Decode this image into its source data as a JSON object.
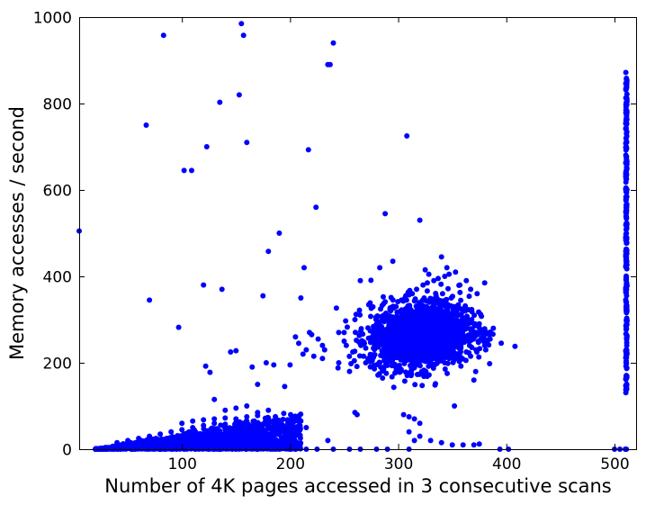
{
  "chart_data": {
    "type": "scatter",
    "title": "",
    "xlabel": "Number of 4K pages accessed in 3 consecutive scans",
    "ylabel": "Memory accesses / second",
    "xlim": [
      5,
      520
    ],
    "ylim": [
      0,
      1000
    ],
    "xticks": [
      100,
      200,
      300,
      400,
      500
    ],
    "yticks": [
      0,
      200,
      400,
      600,
      800,
      1000
    ],
    "grid": false,
    "marker_color": "#0000ff",
    "points": [
      [
        5,
        505
      ],
      [
        67,
        750
      ],
      [
        70,
        345
      ],
      [
        83,
        958
      ],
      [
        97,
        282
      ],
      [
        102,
        645
      ],
      [
        109,
        645
      ],
      [
        120,
        380
      ],
      [
        122,
        192
      ],
      [
        123,
        700
      ],
      [
        126,
        178
      ],
      [
        130,
        115
      ],
      [
        135,
        803
      ],
      [
        137,
        370
      ],
      [
        145,
        225
      ],
      [
        150,
        228
      ],
      [
        153,
        820
      ],
      [
        155,
        985
      ],
      [
        157,
        958
      ],
      [
        160,
        710
      ],
      [
        165,
        190
      ],
      [
        170,
        150
      ],
      [
        175,
        355
      ],
      [
        178,
        200
      ],
      [
        180,
        458
      ],
      [
        185,
        195
      ],
      [
        190,
        500
      ],
      [
        195,
        145
      ],
      [
        200,
        195
      ],
      [
        210,
        350
      ],
      [
        213,
        420
      ],
      [
        217,
        693
      ],
      [
        220,
        265
      ],
      [
        224,
        560
      ],
      [
        230,
        240
      ],
      [
        235,
        890
      ],
      [
        237,
        890
      ],
      [
        240,
        940
      ],
      [
        245,
        200
      ],
      [
        250,
        270
      ],
      [
        255,
        180
      ],
      [
        260,
        300
      ],
      [
        265,
        390
      ],
      [
        270,
        200
      ],
      [
        283,
        420
      ],
      [
        288,
        545
      ],
      [
        295,
        435
      ],
      [
        300,
        190
      ],
      [
        308,
        725
      ],
      [
        320,
        530
      ],
      [
        325,
        415
      ],
      [
        340,
        445
      ],
      [
        345,
        420
      ],
      [
        352,
        100
      ],
      [
        370,
        160
      ],
      [
        380,
        385
      ],
      [
        388,
        280
      ],
      [
        408,
        238
      ],
      [
        402,
        0
      ],
      [
        394,
        0
      ],
      [
        305,
        80
      ],
      [
        310,
        75
      ],
      [
        315,
        70
      ],
      [
        320,
        60
      ],
      [
        310,
        40
      ],
      [
        315,
        20
      ],
      [
        320,
        30
      ],
      [
        330,
        20
      ],
      [
        340,
        15
      ],
      [
        350,
        10
      ],
      [
        360,
        10
      ],
      [
        370,
        10
      ],
      [
        375,
        12
      ],
      [
        310,
        0
      ],
      [
        290,
        0
      ],
      [
        280,
        0
      ],
      [
        265,
        0
      ],
      [
        255,
        0
      ],
      [
        240,
        0
      ],
      [
        235,
        20
      ],
      [
        225,
        0
      ],
      [
        215,
        0
      ],
      [
        205,
        0
      ],
      [
        260,
        85
      ],
      [
        262,
        80
      ],
      [
        245,
        270
      ],
      [
        250,
        250
      ],
      [
        230,
        210
      ],
      [
        232,
        230
      ],
      [
        205,
        260
      ],
      [
        208,
        245
      ],
      [
        212,
        220
      ],
      [
        215,
        230
      ],
      [
        218,
        270
      ],
      [
        222,
        215
      ],
      [
        226,
        255
      ],
      [
        252,
        240
      ],
      [
        258,
        225
      ],
      [
        268,
        215
      ],
      [
        272,
        210
      ],
      [
        276,
        205
      ],
      [
        278,
        255
      ],
      [
        282,
        265
      ],
      [
        285,
        228
      ],
      [
        290,
        235
      ],
      [
        292,
        210
      ],
      [
        295,
        250
      ],
      [
        300,
        275
      ],
      [
        302,
        290
      ],
      [
        305,
        300
      ],
      [
        308,
        260
      ],
      [
        310,
        280
      ],
      [
        312,
        230
      ],
      [
        315,
        260
      ],
      [
        318,
        310
      ],
      [
        320,
        245
      ],
      [
        322,
        275
      ],
      [
        325,
        300
      ],
      [
        328,
        265
      ],
      [
        330,
        230
      ],
      [
        332,
        285
      ],
      [
        335,
        320
      ],
      [
        338,
        250
      ],
      [
        340,
        270
      ],
      [
        342,
        300
      ],
      [
        345,
        260
      ],
      [
        348,
        290
      ],
      [
        350,
        235
      ],
      [
        352,
        275
      ],
      [
        355,
        310
      ],
      [
        358,
        240
      ],
      [
        360,
        280
      ],
      [
        362,
        320
      ],
      [
        365,
        250
      ],
      [
        368,
        300
      ],
      [
        370,
        270
      ],
      [
        372,
        230
      ],
      [
        375,
        290
      ],
      [
        378,
        260
      ],
      [
        380,
        240
      ],
      [
        382,
        270
      ],
      [
        385,
        255
      ],
      [
        288,
        300
      ],
      [
        293,
        320
      ],
      [
        298,
        330
      ],
      [
        303,
        345
      ],
      [
        307,
        355
      ],
      [
        313,
        360
      ],
      [
        317,
        370
      ],
      [
        323,
        380
      ],
      [
        327,
        385
      ],
      [
        333,
        390
      ],
      [
        337,
        395
      ],
      [
        343,
        400
      ],
      [
        347,
        405
      ],
      [
        353,
        410
      ],
      [
        357,
        380
      ],
      [
        363,
        390
      ],
      [
        367,
        370
      ],
      [
        373,
        360
      ],
      [
        298,
        220
      ],
      [
        303,
        210
      ],
      [
        307,
        205
      ],
      [
        313,
        200
      ],
      [
        317,
        215
      ],
      [
        323,
        205
      ],
      [
        327,
        210
      ],
      [
        333,
        220
      ],
      [
        337,
        215
      ],
      [
        343,
        200
      ],
      [
        347,
        210
      ],
      [
        353,
        220
      ],
      [
        357,
        215
      ],
      [
        363,
        225
      ],
      [
        367,
        215
      ],
      [
        283,
        200
      ],
      [
        286,
        215
      ],
      [
        289,
        225
      ],
      [
        291,
        245
      ],
      [
        294,
        265
      ],
      [
        296,
        285
      ],
      [
        299,
        300
      ],
      [
        301,
        245
      ],
      [
        304,
        265
      ],
      [
        306,
        285
      ],
      [
        309,
        305
      ],
      [
        311,
        325
      ],
      [
        314,
        290
      ],
      [
        316,
        270
      ],
      [
        319,
        250
      ],
      [
        321,
        330
      ],
      [
        324,
        350
      ],
      [
        326,
        320
      ],
      [
        329,
        340
      ],
      [
        331,
        305
      ],
      [
        334,
        280
      ],
      [
        336,
        260
      ],
      [
        339,
        340
      ],
      [
        341,
        360
      ],
      [
        344,
        330
      ],
      [
        346,
        310
      ],
      [
        349,
        350
      ],
      [
        351,
        330
      ],
      [
        354,
        290
      ],
      [
        356,
        270
      ],
      [
        359,
        300
      ],
      [
        361,
        260
      ],
      [
        364,
        280
      ],
      [
        366,
        240
      ],
      [
        369,
        260
      ],
      [
        371,
        290
      ],
      [
        374,
        250
      ],
      [
        376,
        270
      ],
      [
        379,
        250
      ],
      [
        381,
        230
      ],
      [
        20,
        0
      ],
      [
        25,
        0
      ],
      [
        30,
        0
      ],
      [
        35,
        2
      ],
      [
        40,
        4
      ],
      [
        45,
        6
      ],
      [
        50,
        8
      ],
      [
        55,
        10
      ],
      [
        60,
        12
      ],
      [
        65,
        14
      ],
      [
        70,
        16
      ],
      [
        75,
        18
      ],
      [
        80,
        20
      ],
      [
        85,
        22
      ],
      [
        90,
        24
      ],
      [
        95,
        26
      ],
      [
        100,
        28
      ],
      [
        105,
        30
      ],
      [
        110,
        32
      ],
      [
        115,
        34
      ],
      [
        120,
        36
      ],
      [
        125,
        38
      ],
      [
        130,
        40
      ],
      [
        135,
        42
      ],
      [
        140,
        44
      ],
      [
        145,
        46
      ],
      [
        150,
        48
      ],
      [
        155,
        50
      ],
      [
        160,
        52
      ],
      [
        165,
        54
      ],
      [
        170,
        56
      ],
      [
        175,
        58
      ],
      [
        180,
        56
      ],
      [
        185,
        54
      ],
      [
        190,
        52
      ],
      [
        195,
        50
      ],
      [
        200,
        48
      ],
      [
        40,
        15
      ],
      [
        50,
        20
      ],
      [
        60,
        25
      ],
      [
        70,
        30
      ],
      [
        80,
        35
      ],
      [
        90,
        40
      ],
      [
        100,
        45
      ],
      [
        110,
        50
      ],
      [
        120,
        55
      ],
      [
        130,
        60
      ],
      [
        140,
        58
      ],
      [
        150,
        62
      ],
      [
        160,
        65
      ],
      [
        170,
        60
      ],
      [
        180,
        62
      ],
      [
        190,
        58
      ],
      [
        60,
        5
      ],
      [
        70,
        8
      ],
      [
        80,
        10
      ],
      [
        90,
        12
      ],
      [
        100,
        15
      ],
      [
        110,
        18
      ],
      [
        120,
        20
      ],
      [
        130,
        22
      ],
      [
        140,
        25
      ],
      [
        150,
        28
      ],
      [
        160,
        30
      ],
      [
        170,
        32
      ],
      [
        180,
        35
      ],
      [
        190,
        38
      ],
      [
        200,
        40
      ],
      [
        100,
        60
      ],
      [
        110,
        65
      ],
      [
        120,
        68
      ],
      [
        130,
        70
      ],
      [
        140,
        72
      ],
      [
        150,
        70
      ],
      [
        160,
        75
      ],
      [
        170,
        78
      ],
      [
        180,
        72
      ],
      [
        130,
        0
      ],
      [
        150,
        0
      ],
      [
        170,
        0
      ],
      [
        190,
        0
      ],
      [
        140,
        90
      ],
      [
        150,
        95
      ],
      [
        160,
        100
      ],
      [
        170,
        85
      ],
      [
        180,
        90
      ],
      [
        210,
        65
      ],
      [
        215,
        50
      ],
      [
        500,
        0
      ],
      [
        505,
        0
      ],
      [
        510,
        0
      ],
      [
        511,
        0
      ]
    ],
    "band_512": {
      "x": 511,
      "y_range": [
        130,
        875
      ]
    },
    "cluster_low": {
      "x_range": [
        20,
        210
      ],
      "y_baseline": 0
    },
    "cluster_mid": {
      "x_center": 320,
      "y_center": 265,
      "x_spread": 60,
      "y_spread": 70
    }
  }
}
